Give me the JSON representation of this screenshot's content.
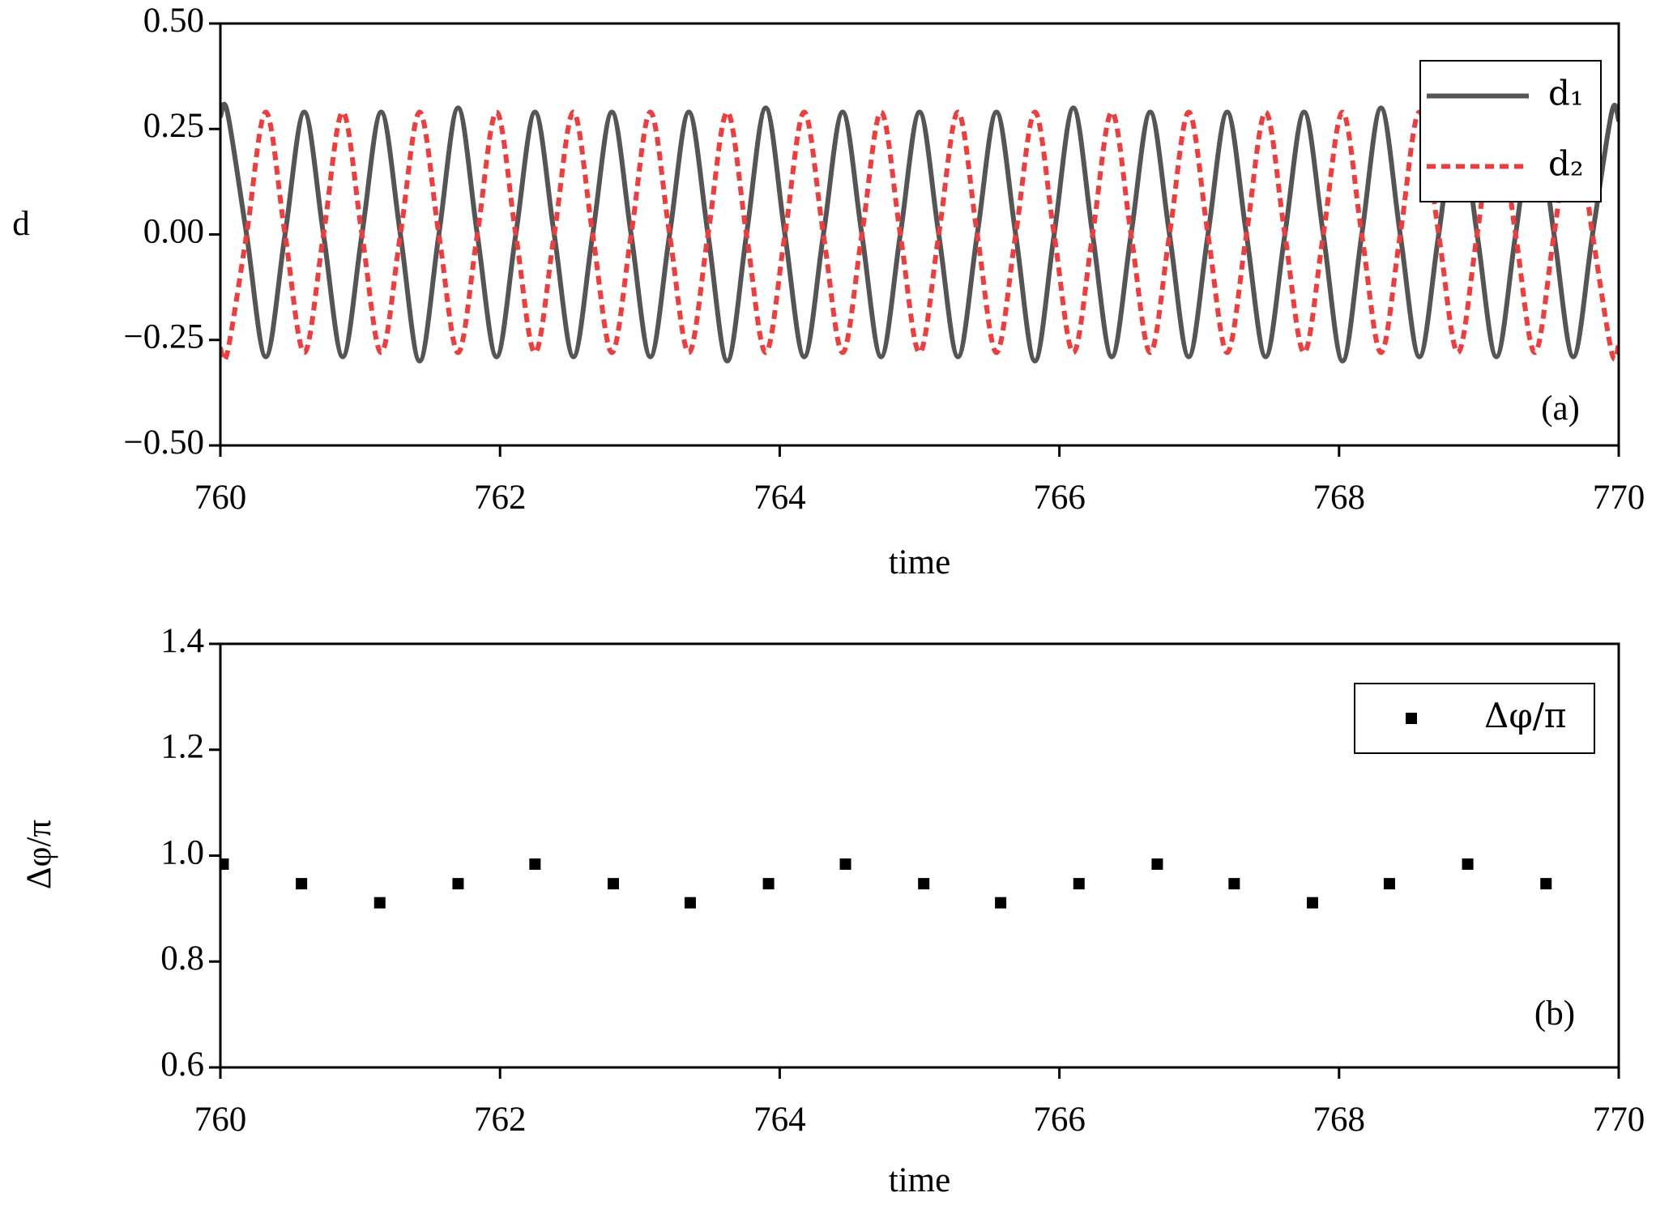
{
  "chart_data": [
    {
      "type": "line",
      "xlabel": "time",
      "ylabel": "d",
      "annotation": "(a)",
      "xlim": [
        760,
        770
      ],
      "xticks": [
        760,
        762,
        764,
        766,
        768,
        770
      ],
      "ylim": [
        -0.5,
        0.5
      ],
      "yticks": [
        {
          "value": -0.5,
          "label": "−0.50"
        },
        {
          "value": -0.25,
          "label": "−0.25"
        },
        {
          "value": 0,
          "label": "0.00"
        },
        {
          "value": 0.25,
          "label": "0.25"
        },
        {
          "value": 0.5,
          "label": "0.50"
        }
      ],
      "legend": "upper right",
      "x": [
        760,
        760.05,
        760.1875,
        760.325,
        760.4625,
        760.6,
        760.7375,
        760.875,
        761.0125,
        761.15,
        761.2875,
        761.425,
        761.5625,
        761.7,
        761.8375,
        761.975,
        762.1125,
        762.25,
        762.3875,
        762.525,
        762.6625,
        762.8,
        762.9375,
        763.075,
        763.2125,
        763.35,
        763.4875,
        763.625,
        763.7625,
        763.9,
        764.0375,
        764.175,
        764.3125,
        764.45,
        764.5875,
        764.725,
        764.8625,
        765.0,
        765.1375,
        765.275,
        765.4125,
        765.55,
        765.6875,
        765.825,
        765.9625,
        766.1,
        766.2375,
        766.375,
        766.5125,
        766.65,
        766.7875,
        766.925,
        767.0625,
        767.2,
        767.3375,
        767.475,
        767.6125,
        767.75,
        767.8875,
        768.025,
        768.1625,
        768.3,
        768.4375,
        768.575,
        768.7125,
        768.85,
        768.9875,
        769.125,
        769.2625,
        769.4,
        769.5375,
        769.675,
        769.8125,
        769.95,
        770
      ],
      "series": [
        {
          "name": "d₁",
          "color": "#555555",
          "style": "solid",
          "values": [
            0.28,
            0.29,
            0,
            -0.29,
            0,
            0.29,
            0,
            -0.29,
            0,
            0.29,
            0,
            -0.3,
            0,
            0.3,
            0,
            -0.29,
            0,
            0.29,
            0,
            -0.29,
            0,
            0.29,
            0,
            -0.29,
            0,
            0.29,
            0,
            -0.3,
            0,
            0.3,
            0,
            -0.29,
            0,
            0.29,
            0,
            -0.29,
            0,
            0.29,
            0,
            -0.29,
            0,
            0.29,
            0,
            -0.3,
            0,
            0.3,
            0,
            -0.29,
            0,
            0.29,
            0,
            -0.29,
            0,
            0.29,
            0,
            -0.29,
            0,
            0.29,
            0,
            -0.3,
            0,
            0.3,
            0,
            -0.29,
            0,
            0.29,
            0,
            -0.29,
            0,
            0.29,
            0,
            -0.29,
            0,
            0.29,
            0.27
          ]
        },
        {
          "name": "d₂",
          "color": "#f03c3c",
          "style": "dashed",
          "values": [
            -0.27,
            -0.28,
            0,
            0.29,
            0,
            -0.28,
            0,
            0.29,
            0,
            -0.28,
            0,
            0.29,
            0,
            -0.28,
            0,
            0.29,
            0,
            -0.28,
            0,
            0.29,
            0,
            -0.28,
            0,
            0.29,
            0,
            -0.28,
            0,
            0.29,
            0,
            -0.28,
            0,
            0.29,
            0,
            -0.28,
            0,
            0.29,
            0,
            -0.28,
            0,
            0.29,
            0,
            -0.28,
            0,
            0.29,
            0,
            -0.28,
            0,
            0.29,
            0,
            -0.28,
            0,
            0.29,
            0,
            -0.28,
            0,
            0.29,
            0,
            -0.28,
            0,
            0.29,
            0,
            -0.28,
            0,
            0.29,
            0,
            -0.28,
            0,
            0.29,
            0,
            -0.28,
            0,
            0.29,
            0,
            -0.28,
            -0.26
          ]
        }
      ]
    },
    {
      "type": "scatter",
      "xlabel": "time",
      "ylabel": "Δφ/π",
      "annotation": "(b)",
      "xlim": [
        760,
        770
      ],
      "xticks": [
        760,
        762,
        764,
        766,
        768,
        770
      ],
      "ylim": [
        0.6,
        1.4
      ],
      "yticks": [
        {
          "value": 0.6,
          "label": "0.6"
        },
        {
          "value": 0.8,
          "label": "0.8"
        },
        {
          "value": 1,
          "label": "1.0"
        },
        {
          "value": 1.2,
          "label": "1.2"
        },
        {
          "value": 1.4,
          "label": "1.4"
        }
      ],
      "legend": "upper right",
      "x": [
        760.02,
        760.58,
        761.14,
        761.7,
        762.25,
        762.81,
        763.36,
        763.92,
        764.47,
        765.03,
        765.58,
        766.14,
        766.7,
        767.25,
        767.81,
        768.36,
        768.92,
        769.48
      ],
      "series": [
        {
          "name": "Δφ/π",
          "color": "#000000",
          "values": [
            0.984,
            0.947,
            0.911,
            0.947,
            0.984,
            0.947,
            0.911,
            0.947,
            0.984,
            0.947,
            0.911,
            0.947,
            0.984,
            0.947,
            0.911,
            0.947,
            0.984,
            0.947
          ]
        }
      ]
    }
  ]
}
